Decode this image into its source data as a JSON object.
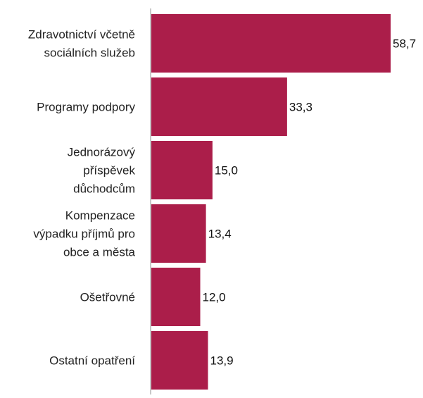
{
  "chart_data": {
    "type": "bar",
    "orientation": "horizontal",
    "categories": [
      [
        "Zdravotnictví včetně",
        "sociálních služeb"
      ],
      [
        "Programy podpory"
      ],
      [
        "Jednorázový",
        "příspěvek",
        "důchodcům"
      ],
      [
        "Kompenzace",
        "výpadku příjmů pro",
        "obce a města"
      ],
      [
        "Ošetřovné"
      ],
      [
        "Ostatní opatření"
      ]
    ],
    "values": [
      58.7,
      33.3,
      15.0,
      13.4,
      12.0,
      13.9
    ],
    "value_labels": [
      "58,7",
      "33,3",
      "15,0",
      "13,4",
      "12,0",
      "13,9"
    ],
    "xlim": [
      0,
      58.7
    ],
    "grid": false,
    "legend": "none",
    "title": "",
    "xlabel": "",
    "ylabel": ""
  },
  "colors": {
    "bar": "#ab1e4a",
    "axis": "#c8c8c8"
  }
}
